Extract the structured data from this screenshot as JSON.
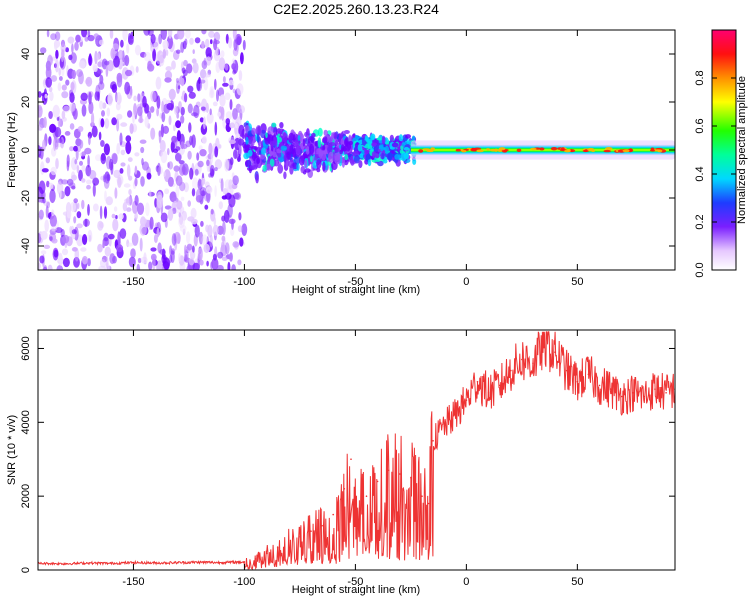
{
  "title": "C2E2.2025.260.13.23.R24",
  "chart_data": [
    {
      "type": "heatmap",
      "xlabel": "Height of straight line (km)",
      "ylabel": "Frequency (Hz)",
      "xlim": [
        -193,
        94
      ],
      "ylim": [
        -50,
        50
      ],
      "xticks": [
        -150,
        -100,
        -50,
        0,
        50
      ],
      "xtick_labels": [
        "-150",
        "-100",
        "-50",
        "0",
        "50"
      ],
      "yticks": [
        -40,
        -20,
        0,
        20,
        40
      ],
      "ytick_labels": [
        "-40",
        "-20",
        "0",
        "20",
        "40"
      ],
      "colorbar": {
        "label": "Normalized spectral amplitude",
        "range": [
          0,
          1
        ],
        "ticks": [
          0.0,
          0.2,
          0.4,
          0.6,
          0.8
        ],
        "tick_labels": [
          "0.0",
          "0.2",
          "0.4",
          "0.6",
          "0.8"
        ]
      },
      "regions": [
        {
          "x_range": [
            -193,
            -100
          ],
          "freq_spread": 50,
          "amplitude": "low, scattered noise"
        },
        {
          "x_range": [
            -100,
            -50
          ],
          "freq_spread": 12,
          "amplitude": "moderate"
        },
        {
          "x_range": [
            -50,
            -25
          ],
          "freq_spread": 7,
          "amplitude": "moderate-high"
        },
        {
          "x_range": [
            -25,
            94
          ],
          "freq_spread": 3,
          "amplitude": "high, concentrated near 0 Hz"
        }
      ]
    },
    {
      "type": "line",
      "xlabel": "Height of straight line (km)",
      "ylabel": "SNR (10 * v/v)",
      "xlim": [
        -193,
        94
      ],
      "ylim": [
        0,
        6500
      ],
      "xticks": [
        -150,
        -100,
        -50,
        0,
        50
      ],
      "xtick_labels": [
        "-150",
        "-100",
        "-50",
        "0",
        "50"
      ],
      "yticks": [
        0,
        2000,
        4000,
        6000
      ],
      "ytick_labels": [
        "0",
        "2000",
        "4000",
        "6000"
      ],
      "color": "#ee3333",
      "series": [
        {
          "name": "SNR",
          "x": [
            -193,
            -180,
            -170,
            -160,
            -150,
            -140,
            -130,
            -120,
            -110,
            -100,
            -95,
            -90,
            -85,
            -80,
            -75,
            -70,
            -65,
            -60,
            -55,
            -52,
            -50,
            -45,
            -40,
            -35,
            -30,
            -25,
            -20,
            -17,
            -15,
            -10,
            -5,
            0,
            5,
            10,
            15,
            20,
            25,
            30,
            35,
            40,
            45,
            50,
            55,
            60,
            65,
            70,
            75,
            80,
            85,
            90,
            94
          ],
          "values": [
            180,
            170,
            190,
            180,
            200,
            190,
            200,
            210,
            200,
            220,
            300,
            450,
            600,
            800,
            900,
            1050,
            1200,
            1500,
            2200,
            3000,
            1800,
            2000,
            2400,
            2700,
            2600,
            2500,
            2000,
            1800,
            3500,
            3900,
            4200,
            4600,
            5100,
            4800,
            5000,
            5400,
            5700,
            5600,
            6100,
            5900,
            5400,
            5100,
            5300,
            5000,
            4900,
            4700,
            4800,
            4700,
            4900,
            4800,
            4900
          ]
        }
      ]
    }
  ]
}
